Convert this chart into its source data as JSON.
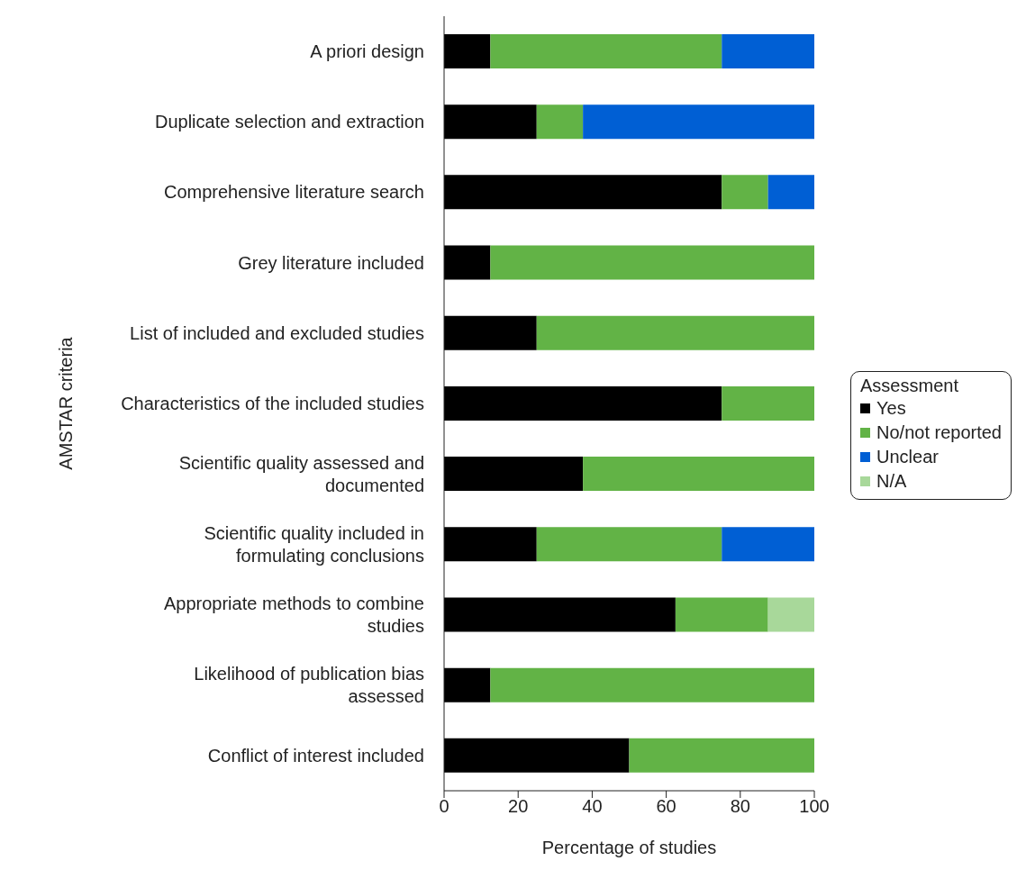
{
  "chart_data": {
    "type": "bar",
    "orientation": "horizontal",
    "stacked": true,
    "xlabel": "Percentage of studies",
    "ylabel": "AMSTAR criteria",
    "legend_title": "Assessment",
    "legend": "right",
    "grid": false,
    "categories": [
      "A priori design",
      "Duplicate selection and extraction",
      "Comprehensive literature search",
      "Grey literature included",
      "List of included and excluded studies",
      "Characteristics of the included studies",
      "Scientific quality assessed and documented",
      "Scientific quality included in formulating conclusions",
      "Appropriate methods to combine studies",
      "Likelihood of publication bias assessed",
      "Conflict of interest included"
    ],
    "xlim": [
      0,
      100
    ],
    "xticks": [
      0,
      20,
      40,
      60,
      80,
      100
    ],
    "series": [
      {
        "name": "Yes",
        "color": "#000000",
        "values": [
          12.5,
          25,
          75,
          12.5,
          25,
          75,
          37.5,
          25,
          62.5,
          12.5,
          50
        ]
      },
      {
        "name": "No/not reported",
        "color": "#62b346",
        "values": [
          62.5,
          12.5,
          12.5,
          87.5,
          75,
          25,
          62.5,
          50,
          25,
          87.5,
          50
        ]
      },
      {
        "name": "Unclear",
        "color": "#005fd4",
        "values": [
          25,
          62.5,
          12.5,
          0,
          0,
          0,
          0,
          25,
          0,
          0,
          0
        ]
      },
      {
        "name": "N/A",
        "color": "#a8d89a",
        "values": [
          0,
          0,
          0,
          0,
          0,
          0,
          0,
          0,
          12.5,
          0,
          0
        ]
      }
    ]
  }
}
